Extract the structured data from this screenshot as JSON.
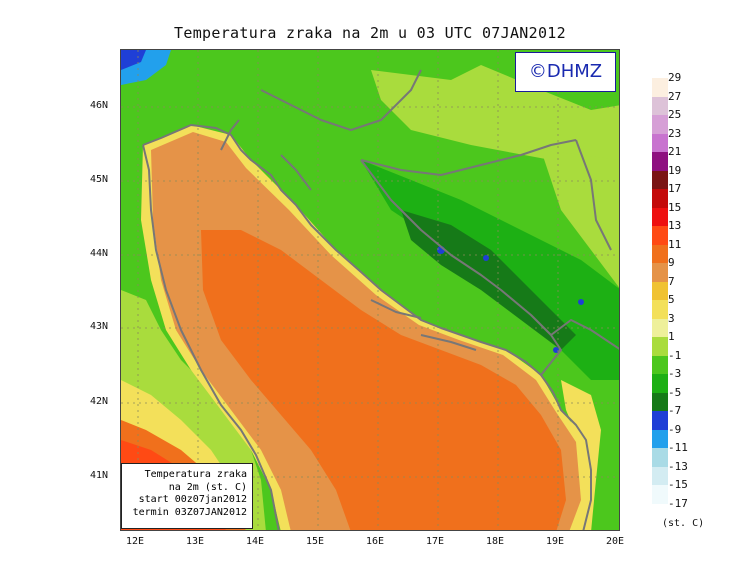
{
  "title": "Temperatura zraka na 2m u 03 UTC 07JAN2012",
  "logo_text": "©DHMZ",
  "info_box": [
    "Temperatura zraka",
    "na 2m (st. C)",
    "start 00z07jan2012",
    "termin 03Z07JAN2012"
  ],
  "lat_labels": [
    "46N",
    "45N",
    "44N",
    "43N",
    "42N",
    "41N"
  ],
  "lon_labels": [
    "12E",
    "13E",
    "14E",
    "15E",
    "16E",
    "17E",
    "18E",
    "19E",
    "20E"
  ],
  "colorbar": {
    "units": "(st. C)",
    "labels": [
      "29",
      "27",
      "25",
      "23",
      "21",
      "19",
      "17",
      "15",
      "13",
      "11",
      "9",
      "7",
      "5",
      "3",
      "1",
      "-1",
      "-3",
      "-5",
      "-7",
      "-9",
      "-11",
      "-13",
      "-15",
      "-17"
    ],
    "colors": [
      "#fcefe0",
      "#ddc2d8",
      "#d69fd6",
      "#c873cf",
      "#8e0f80",
      "#7a1414",
      "#c40a0a",
      "#ee1010",
      "#ff4a14",
      "#f0701c",
      "#e59348",
      "#f0c232",
      "#f3e05a",
      "#eef09a",
      "#a9dc3d",
      "#4cc71d",
      "#1db014",
      "#167a18",
      "#1f3fd6",
      "#22a0ec",
      "#a9dbe6",
      "#d3ecf2",
      "#f0fafc"
    ]
  },
  "colors": {
    "land_green": "#4cc71d",
    "light_green": "#a9dc3d",
    "dark_green": "#1db014",
    "sea_orange": "#f0701c",
    "sea_light_orange": "#e59348",
    "yellow": "#f3e05a",
    "border_gray": "#777777"
  }
}
